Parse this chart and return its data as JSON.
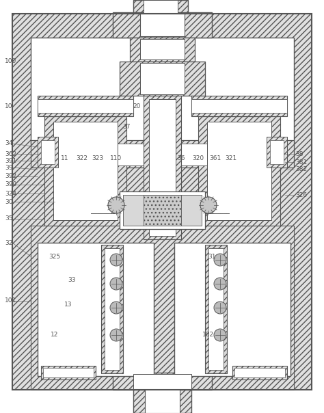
{
  "bg": "#ffffff",
  "lc": "#555555",
  "hc": "#888888",
  "fc_hatch": "#e0e0e0",
  "fc_white": "#ffffff",
  "label_c": "#555555",
  "lfs": 6.5,
  "fig_w": 4.74,
  "fig_h": 6.04,
  "dpi": 100
}
